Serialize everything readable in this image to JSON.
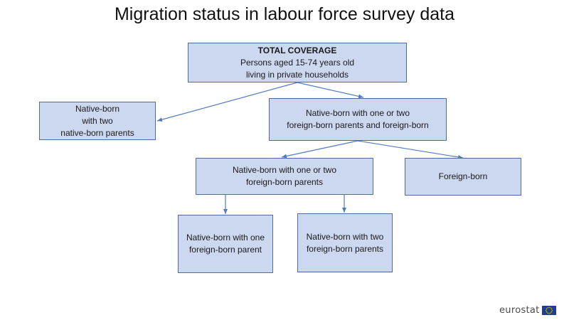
{
  "title": "Migration status in labour force survey data",
  "nodes": {
    "root": {
      "heading": "TOTAL COVERAGE",
      "line1": "Persons aged 15-74 years old",
      "line2": "living in private households"
    },
    "native": {
      "line1": "Native-born",
      "line2": "with two",
      "line3": "native-born parents"
    },
    "mixed": {
      "line1": "Native-born with one or two",
      "line2": "foreign-born parents and foreign-born"
    },
    "second_gen": {
      "line1": "Native-born with one or two",
      "line2": "foreign-born parents"
    },
    "foreign": {
      "line1": "Foreign-born"
    },
    "one_parent": {
      "line1": "Native-born with one",
      "line2": "foreign-born parent"
    },
    "two_parents": {
      "line1": "Native-born with two",
      "line2": "foreign-born parents"
    }
  },
  "logo": {
    "text": "eurostat",
    "colors": {
      "flag_blue": "#1f3f93",
      "flag_stars": "#f5d100"
    }
  },
  "colors": {
    "box_fill": "#ccd7f0",
    "box_border": "#4f6b99",
    "connector": "#4f7cc0"
  }
}
